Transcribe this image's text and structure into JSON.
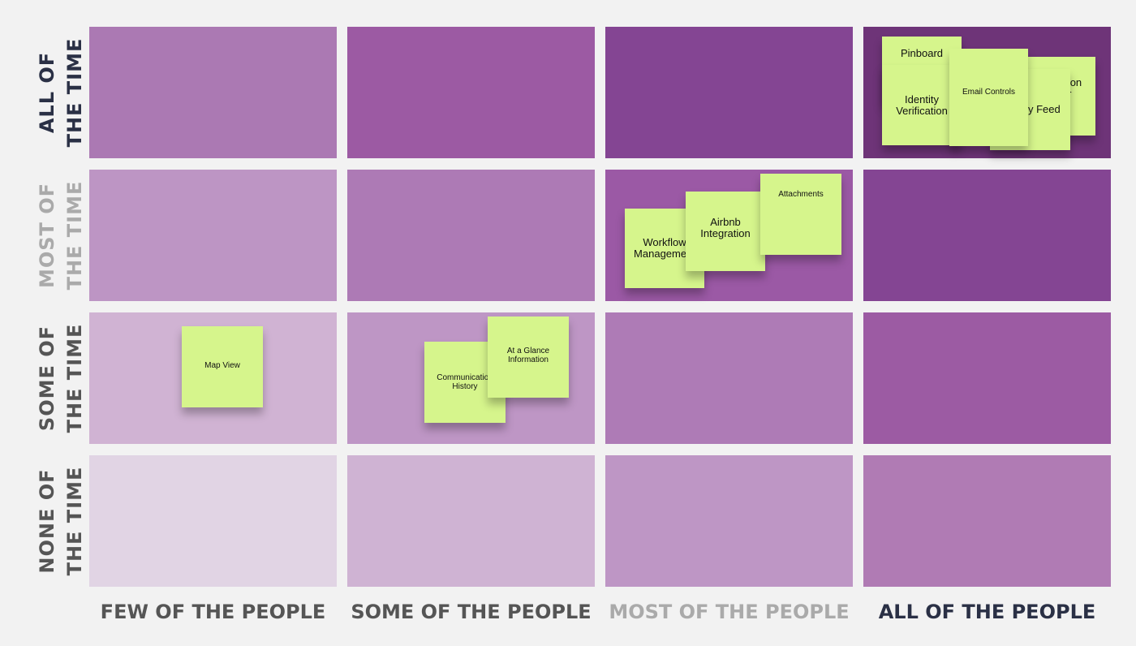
{
  "rows": [
    {
      "line1": "ALL OF",
      "line2": "THE TIME",
      "color": "#2a3045"
    },
    {
      "line1": "MOST OF",
      "line2": "THE TIME",
      "color": "#aaaaaa"
    },
    {
      "line1": "SOME OF",
      "line2": "THE TIME",
      "color": "#555555"
    },
    {
      "line1": "NONE OF",
      "line2": "THE TIME",
      "color": "#555555"
    }
  ],
  "columns": [
    {
      "label": "FEW OF THE PEOPLE",
      "color": "#555555"
    },
    {
      "label": "SOME OF THE PEOPLE",
      "color": "#555555"
    },
    {
      "label": "MOST OF THE PEOPLE",
      "color": "#aaaaaa"
    },
    {
      "label": "ALL OF THE PEOPLE",
      "color": "#2a3045"
    }
  ],
  "cell_colors": [
    [
      "#ab79b3",
      "#9c5aa3",
      "#844593",
      "#6e3478"
    ],
    [
      "#bd95c4",
      "#ad7ab5",
      "#9b59a5",
      "#844593"
    ],
    [
      "#d0b3d3",
      "#be96c5",
      "#ae7bb6",
      "#9c5ba3"
    ],
    [
      "#e1d4e4",
      "#cfb3d3",
      "#be96c5",
      "#b07bb4"
    ]
  ],
  "notes": {
    "all_time_all_people": {
      "note1": "Pinboard",
      "note2": "Notification\nCenter",
      "note3": "Activity Feed",
      "identity_verification": "Identity\nVerification",
      "email_controls": "Email Controls"
    },
    "most_time_most_people": {
      "workflow_management": "Workflow\nManagement",
      "airbnb_integration": "Airbnb\nIntegration",
      "attachments": "Attachments"
    },
    "some_time_few_people": {
      "map_view": "Map View"
    },
    "some_time_some_people": {
      "communication_history": "Communication\nHistory",
      "at_a_glance": "At a Glance\nInformation"
    }
  }
}
